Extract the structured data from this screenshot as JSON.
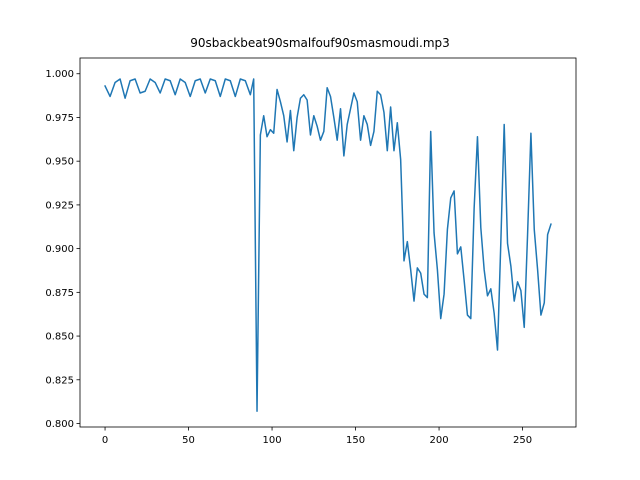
{
  "chart_data": {
    "type": "line",
    "title": "90sbackbeat90smalfouf90smasmoudi.mp3",
    "xlabel": "",
    "ylabel": "",
    "xlim": [
      -15,
      282
    ],
    "ylim": [
      0.798,
      1.009
    ],
    "xticks": [
      0,
      50,
      100,
      150,
      200,
      250
    ],
    "xtick_labels": [
      "0",
      "50",
      "100",
      "150",
      "200",
      "250"
    ],
    "yticks": [
      0.8,
      0.825,
      0.85,
      0.875,
      0.9,
      0.925,
      0.95,
      0.975,
      1.0
    ],
    "ytick_labels": [
      "0.800",
      "0.825",
      "0.850",
      "0.875",
      "0.900",
      "0.925",
      "0.950",
      "0.975",
      "1.000"
    ],
    "grid": false,
    "series": [
      {
        "color": "#1f77b4",
        "x": [
          0,
          3,
          6,
          9,
          12,
          15,
          18,
          21,
          24,
          27,
          30,
          33,
          36,
          39,
          42,
          45,
          48,
          51,
          54,
          57,
          60,
          63,
          66,
          69,
          72,
          75,
          78,
          81,
          84,
          87,
          89,
          91,
          93,
          95,
          97,
          99,
          101,
          103,
          105,
          107,
          109,
          111,
          113,
          115,
          117,
          119,
          121,
          123,
          125,
          127,
          129,
          131,
          133,
          135,
          137,
          139,
          141,
          143,
          145,
          147,
          149,
          151,
          153,
          155,
          157,
          159,
          161,
          163,
          165,
          167,
          169,
          171,
          173,
          175,
          177,
          179,
          181,
          183,
          185,
          187,
          189,
          191,
          193,
          195,
          197,
          199,
          201,
          203,
          205,
          207,
          209,
          211,
          213,
          215,
          217,
          219,
          221,
          223,
          225,
          227,
          229,
          231,
          233,
          235,
          237,
          239,
          241,
          243,
          245,
          247,
          249,
          251,
          253,
          255,
          257,
          259,
          261,
          263,
          265,
          267
        ],
        "y": [
          0.993,
          0.987,
          0.995,
          0.997,
          0.986,
          0.996,
          0.997,
          0.989,
          0.99,
          0.997,
          0.995,
          0.989,
          0.997,
          0.996,
          0.988,
          0.997,
          0.995,
          0.987,
          0.996,
          0.997,
          0.989,
          0.997,
          0.996,
          0.987,
          0.997,
          0.996,
          0.987,
          0.997,
          0.996,
          0.988,
          0.997,
          0.807,
          0.965,
          0.976,
          0.964,
          0.968,
          0.966,
          0.991,
          0.984,
          0.976,
          0.961,
          0.979,
          0.956,
          0.975,
          0.986,
          0.988,
          0.985,
          0.965,
          0.976,
          0.97,
          0.962,
          0.967,
          0.992,
          0.987,
          0.975,
          0.962,
          0.98,
          0.953,
          0.971,
          0.98,
          0.989,
          0.984,
          0.962,
          0.976,
          0.971,
          0.959,
          0.967,
          0.99,
          0.988,
          0.978,
          0.956,
          0.981,
          0.956,
          0.972,
          0.951,
          0.893,
          0.904,
          0.888,
          0.87,
          0.889,
          0.886,
          0.874,
          0.872,
          0.967,
          0.909,
          0.888,
          0.86,
          0.874,
          0.911,
          0.929,
          0.933,
          0.897,
          0.901,
          0.882,
          0.862,
          0.86,
          0.923,
          0.964,
          0.912,
          0.888,
          0.873,
          0.877,
          0.863,
          0.842,
          0.904,
          0.971,
          0.903,
          0.89,
          0.87,
          0.881,
          0.876,
          0.855,
          0.908,
          0.966,
          0.911,
          0.888,
          0.862,
          0.869,
          0.908,
          0.914
        ]
      }
    ]
  }
}
